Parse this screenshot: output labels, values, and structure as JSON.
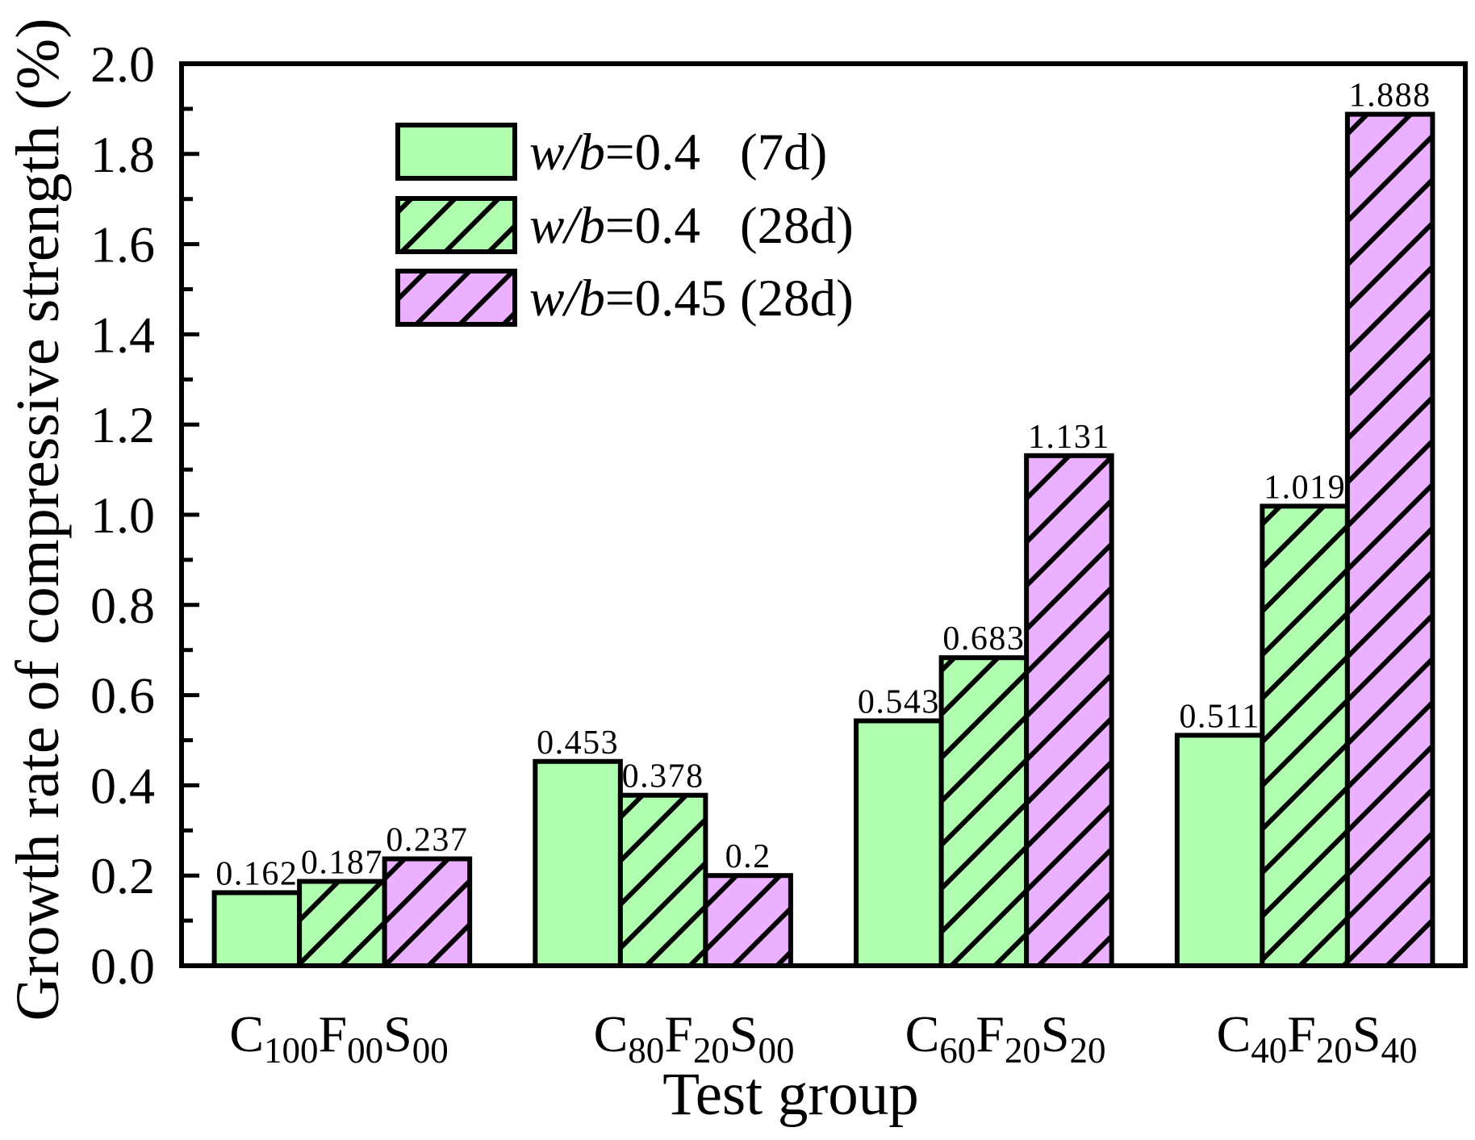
{
  "chart_data": {
    "type": "bar",
    "xlabel": "Test group",
    "ylabel": "Growth rate of compressive strength (%)",
    "ylim": [
      0,
      2.0
    ],
    "yticks": [
      "0.0",
      "0.2",
      "0.4",
      "0.6",
      "0.8",
      "1.0",
      "1.2",
      "1.4",
      "1.6",
      "1.8",
      "2.0"
    ],
    "grid": false,
    "legend": "top-left",
    "categories": [
      "C100F00S00",
      "C80F20S00",
      "C60F20S20",
      "C40F20S40"
    ],
    "series": [
      {
        "name": "w/b=0.4 (7d)",
        "values": [
          0.162,
          0.453,
          0.543,
          0.511
        ],
        "color": "#b0ffb0",
        "hatched": false
      },
      {
        "name": "w/b=0.4 (28d)",
        "values": [
          0.187,
          0.378,
          0.683,
          1.019
        ],
        "color": "#b0ffb0",
        "hatched": true
      },
      {
        "name": "w/b=0.45 (28d)",
        "values": [
          0.237,
          0.2,
          1.131,
          1.888
        ],
        "color": "#ebb0ff",
        "hatched": true
      }
    ],
    "outline_color": "#000000"
  }
}
